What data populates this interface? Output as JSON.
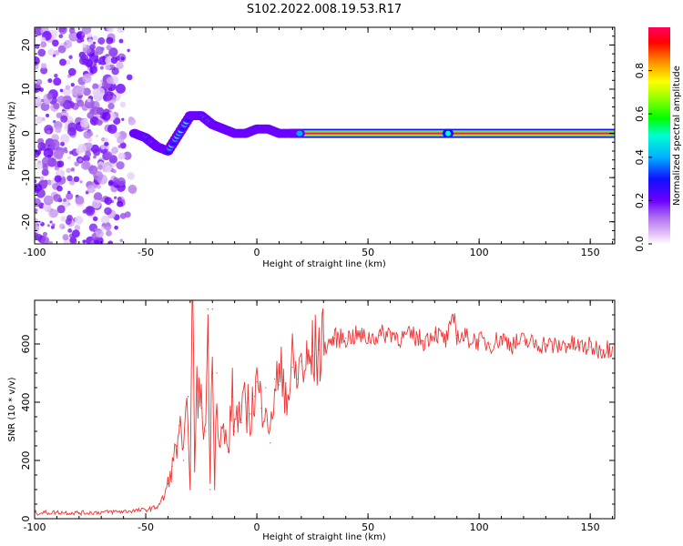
{
  "title": "S102.2022.008.19.53.R17",
  "chart_data": [
    {
      "type": "heatmap",
      "xlabel": "Height of straight line (km)",
      "ylabel": "Frequency (Hz)",
      "xlim": [
        -100,
        161
      ],
      "ylim": [
        -25,
        24
      ],
      "xticks": [
        -100,
        -50,
        0,
        50,
        100,
        150
      ],
      "yticks": [
        -20,
        -10,
        0,
        10,
        20
      ],
      "grid": false,
      "colorbar": {
        "label": "Normalized spectral amplitude",
        "range": [
          0,
          1
        ],
        "ticks": [
          0.0,
          0.2,
          0.4,
          0.6,
          0.8
        ],
        "colors": [
          "#ffffff",
          "#e8c8f8",
          "#b070f0",
          "#6a00ff",
          "#1010ff",
          "#00b0ff",
          "#00ffd0",
          "#00ff00",
          "#a0ff00",
          "#ffff00",
          "#ff8000",
          "#ff0000",
          "#ff0060"
        ]
      },
      "ridge": [
        {
          "x": -55,
          "y": 0
        },
        {
          "x": -50,
          "y": -1
        },
        {
          "x": -45,
          "y": -3
        },
        {
          "x": -40,
          "y": -4
        },
        {
          "x": -35,
          "y": 0
        },
        {
          "x": -30,
          "y": 4
        },
        {
          "x": -25,
          "y": 4
        },
        {
          "x": -20,
          "y": 2
        },
        {
          "x": -15,
          "y": 1
        },
        {
          "x": -10,
          "y": 0
        },
        {
          "x": -5,
          "y": 0
        },
        {
          "x": 0,
          "y": 1
        },
        {
          "x": 5,
          "y": 1
        },
        {
          "x": 10,
          "y": 0
        },
        {
          "x": 15,
          "y": 0
        },
        {
          "x": 20,
          "y": 0
        },
        {
          "x": 160,
          "y": 0
        }
      ]
    },
    {
      "type": "line",
      "xlabel": "Height of straight line (km)",
      "ylabel": "SNR (10 * v/v)",
      "xlim": [
        -100,
        161
      ],
      "ylim": [
        0,
        750
      ],
      "xticks": [
        -100,
        -50,
        0,
        50,
        100,
        150
      ],
      "yticks": [
        0,
        200,
        400,
        600
      ],
      "grid": false,
      "color": "#ee3333",
      "series": [
        {
          "x": [
            -100,
            -90,
            -80,
            -70,
            -60,
            -50,
            -45,
            -42,
            -40,
            -38,
            -36,
            -35,
            -33,
            -31,
            -30,
            -29,
            -28,
            -27,
            -25,
            -23,
            -22,
            -21,
            -20,
            -19,
            -18,
            -17,
            -15,
            -13,
            -11,
            -10,
            -9,
            -7,
            -5,
            -3,
            -1,
            0,
            2,
            4,
            6,
            8,
            10,
            12,
            14,
            16,
            18,
            20,
            22,
            25,
            28,
            32,
            35,
            40,
            45,
            50,
            55,
            60,
            65,
            70,
            75,
            80,
            85,
            89,
            90,
            95,
            100,
            105,
            110,
            115,
            120,
            125,
            130,
            135,
            140,
            145,
            150,
            155,
            160
          ],
          "values": [
            20,
            22,
            20,
            22,
            25,
            30,
            40,
            70,
            120,
            180,
            250,
            320,
            200,
            420,
            100,
            750,
            200,
            450,
            380,
            300,
            720,
            100,
            720,
            120,
            500,
            250,
            300,
            230,
            420,
            300,
            380,
            330,
            400,
            360,
            420,
            470,
            380,
            450,
            260,
            480,
            460,
            500,
            420,
            520,
            480,
            540,
            510,
            560,
            580,
            600,
            620,
            620,
            630,
            620,
            630,
            640,
            620,
            630,
            610,
            640,
            610,
            690,
            630,
            620,
            610,
            600,
            620,
            600,
            610,
            600,
            600,
            590,
            600,
            590,
            590,
            580,
            590
          ]
        }
      ]
    }
  ]
}
